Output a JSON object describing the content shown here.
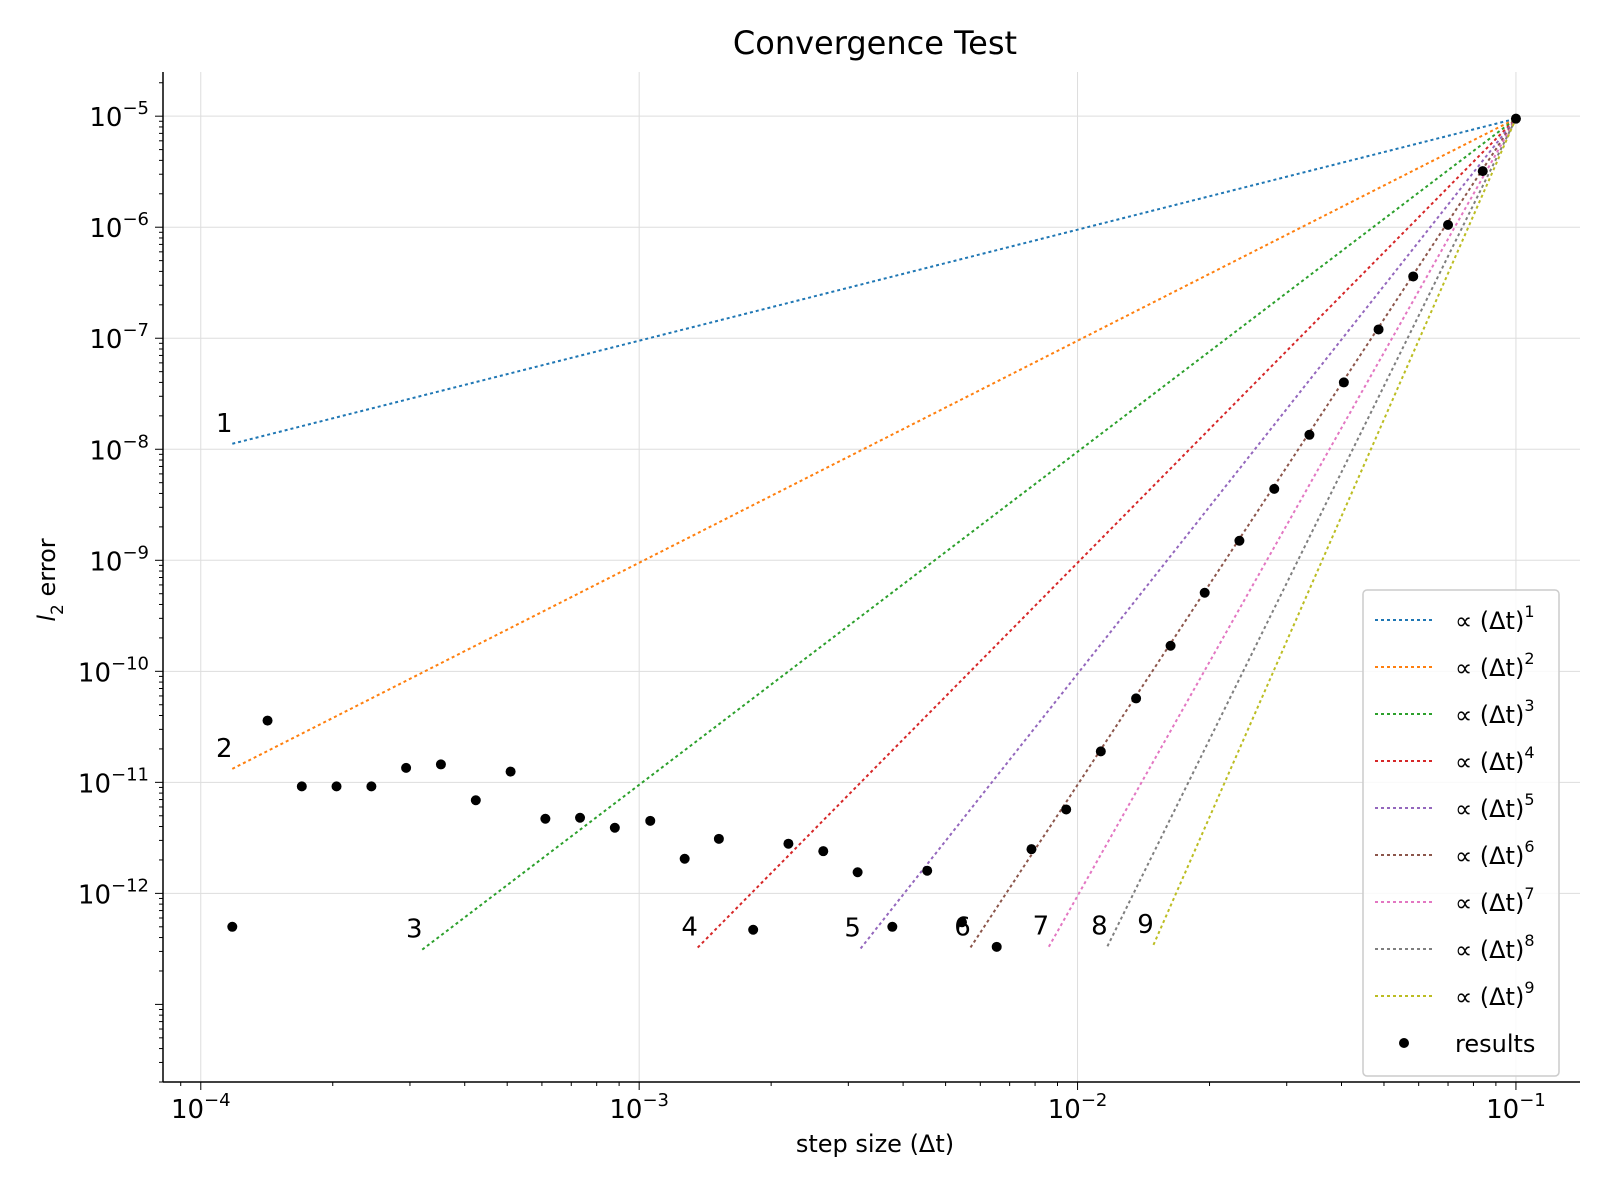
{
  "chart_data": {
    "type": "scatter",
    "title": "Convergence Test",
    "xlabel": "step size (Δt)",
    "ylabel": "l2 error",
    "xscale": "log",
    "yscale": "log",
    "xlim": [
      8.2e-05,
      0.14
    ],
    "ylim": [
      2e-14,
      2.5e-05
    ],
    "grid": true,
    "legend_position": "lower-right",
    "x_ticks": [
      {
        "value": 0.0001,
        "base": "10",
        "exp": "−4"
      },
      {
        "value": 0.001,
        "base": "10",
        "exp": "−3"
      },
      {
        "value": 0.01,
        "base": "10",
        "exp": "−2"
      },
      {
        "value": 0.1,
        "base": "10",
        "exp": "−1"
      }
    ],
    "y_ticks": [
      {
        "value": 1e-12,
        "base": "10",
        "exp": "−12"
      },
      {
        "value": 1e-11,
        "base": "10",
        "exp": "−11"
      },
      {
        "value": 1e-10,
        "base": "10",
        "exp": "−10"
      },
      {
        "value": 1e-09,
        "base": "10",
        "exp": "−9"
      },
      {
        "value": 1e-08,
        "base": "10",
        "exp": "−8"
      },
      {
        "value": 1e-07,
        "base": "10",
        "exp": "−7"
      },
      {
        "value": 1e-06,
        "base": "10",
        "exp": "−6"
      },
      {
        "value": 1e-05,
        "base": "10",
        "exp": "−5"
      }
    ],
    "reference_lines": [
      {
        "order": 1,
        "label": "1",
        "legend": "∝ (Δt)",
        "sup": "1",
        "color": "#1f77b4",
        "x_start": 0.000118,
        "x_end": 0.1,
        "y_at_end": 9.5e-06
      },
      {
        "order": 2,
        "label": "2",
        "legend": "∝ (Δt)",
        "sup": "2",
        "color": "#ff7f0e",
        "x_start": 0.000118,
        "x_end": 0.1,
        "y_at_end": 9.5e-06
      },
      {
        "order": 3,
        "label": "3",
        "legend": "∝ (Δt)",
        "sup": "3",
        "color": "#2ca02c",
        "x_start": 0.00032,
        "x_end": 0.1,
        "y_at_end": 9.5e-06
      },
      {
        "order": 4,
        "label": "4",
        "legend": "∝ (Δt)",
        "sup": "4",
        "color": "#d62728",
        "x_start": 0.00136,
        "x_end": 0.1,
        "y_at_end": 9.5e-06
      },
      {
        "order": 5,
        "label": "5",
        "legend": "∝ (Δt)",
        "sup": "5",
        "color": "#9467bd",
        "x_start": 0.0032,
        "x_end": 0.1,
        "y_at_end": 9.5e-06
      },
      {
        "order": 6,
        "label": "6",
        "legend": "∝ (Δt)",
        "sup": "6",
        "color": "#8c564b",
        "x_start": 0.0057,
        "x_end": 0.1,
        "y_at_end": 9.5e-06
      },
      {
        "order": 7,
        "label": "7",
        "legend": "∝ (Δt)",
        "sup": "7",
        "color": "#e377c2",
        "x_start": 0.0086,
        "x_end": 0.1,
        "y_at_end": 9.5e-06
      },
      {
        "order": 8,
        "label": "8",
        "legend": "∝ (Δt)",
        "sup": "8",
        "color": "#7f7f7f",
        "x_start": 0.0117,
        "x_end": 0.1,
        "y_at_end": 9.5e-06
      },
      {
        "order": 9,
        "label": "9",
        "legend": "∝ (Δt)",
        "sup": "9",
        "color": "#bcbd22",
        "x_start": 0.0149,
        "x_end": 0.1,
        "y_at_end": 9.5e-06
      }
    ],
    "series": [
      {
        "name": "results",
        "color": "#000000",
        "points": [
          {
            "x": 0.000118,
            "y": 5e-13
          },
          {
            "x": 0.000142,
            "y": 3.6e-11
          },
          {
            "x": 0.00017,
            "y": 9.2e-12
          },
          {
            "x": 0.000204,
            "y": 9.2e-12
          },
          {
            "x": 0.000245,
            "y": 9.2e-12
          },
          {
            "x": 0.000294,
            "y": 1.35e-11
          },
          {
            "x": 0.000353,
            "y": 1.45e-11
          },
          {
            "x": 0.000424,
            "y": 6.9e-12
          },
          {
            "x": 0.000509,
            "y": 1.25e-11
          },
          {
            "x": 0.000611,
            "y": 4.7e-12
          },
          {
            "x": 0.000733,
            "y": 4.8e-12
          },
          {
            "x": 0.00088,
            "y": 3.9e-12
          },
          {
            "x": 0.00106,
            "y": 4.5e-12
          },
          {
            "x": 0.00127,
            "y": 2.05e-12
          },
          {
            "x": 0.00152,
            "y": 3.1e-12
          },
          {
            "x": 0.00182,
            "y": 4.7e-13
          },
          {
            "x": 0.00219,
            "y": 2.8e-12
          },
          {
            "x": 0.00263,
            "y": 2.4e-12
          },
          {
            "x": 0.00315,
            "y": 1.55e-12
          },
          {
            "x": 0.00378,
            "y": 5e-13
          },
          {
            "x": 0.00454,
            "y": 1.6e-12
          },
          {
            "x": 0.00545,
            "y": 5.5e-13
          },
          {
            "x": 0.00654,
            "y": 3.3e-13
          },
          {
            "x": 0.00785,
            "y": 2.5e-12
          },
          {
            "x": 0.00942,
            "y": 5.7e-12
          },
          {
            "x": 0.0113,
            "y": 1.9e-11
          },
          {
            "x": 0.0136,
            "y": 5.7e-11
          },
          {
            "x": 0.0163,
            "y": 1.7e-10
          },
          {
            "x": 0.0195,
            "y": 5.1e-10
          },
          {
            "x": 0.0234,
            "y": 1.5e-09
          },
          {
            "x": 0.0281,
            "y": 4.4e-09
          },
          {
            "x": 0.0338,
            "y": 1.35e-08
          },
          {
            "x": 0.0405,
            "y": 4e-08
          },
          {
            "x": 0.0486,
            "y": 1.2e-07
          },
          {
            "x": 0.0583,
            "y": 3.6e-07
          },
          {
            "x": 0.07,
            "y": 1.05e-06
          },
          {
            "x": 0.084,
            "y": 3.2e-06
          },
          {
            "x": 0.1,
            "y": 9.5e-06
          }
        ]
      }
    ]
  }
}
